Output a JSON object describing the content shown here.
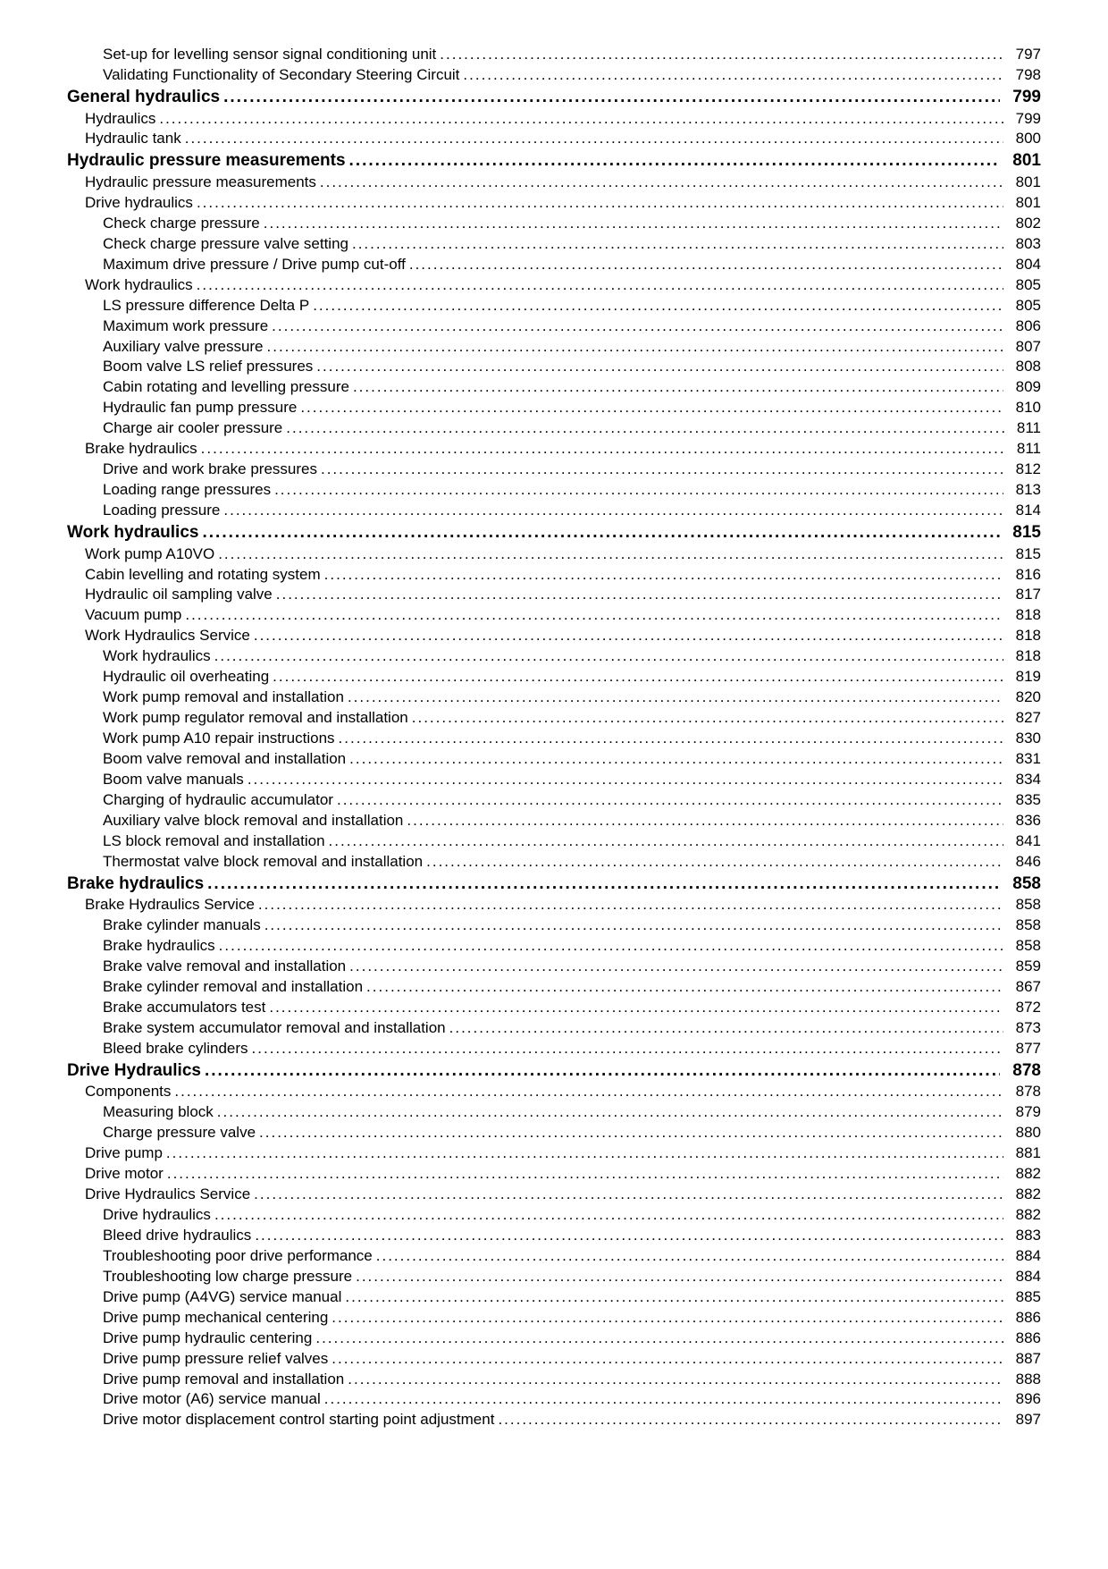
{
  "toc": [
    {
      "level": 2,
      "label": "Set-up for levelling sensor signal conditioning unit",
      "page": 797
    },
    {
      "level": 2,
      "label": "Validating Functionality of Secondary Steering Circuit",
      "page": 798
    },
    {
      "level": 0,
      "label": "General hydraulics",
      "page": 799
    },
    {
      "level": 1,
      "label": "Hydraulics",
      "page": 799
    },
    {
      "level": 1,
      "label": "Hydraulic tank",
      "page": 800
    },
    {
      "level": 0,
      "label": "Hydraulic pressure measurements",
      "page": 801
    },
    {
      "level": 1,
      "label": "Hydraulic pressure measurements",
      "page": 801
    },
    {
      "level": 1,
      "label": "Drive hydraulics",
      "page": 801
    },
    {
      "level": 2,
      "label": "Check charge pressure",
      "page": 802
    },
    {
      "level": 2,
      "label": "Check charge pressure valve setting",
      "page": 803
    },
    {
      "level": 2,
      "label": "Maximum drive pressure / Drive pump cut-off",
      "page": 804
    },
    {
      "level": 1,
      "label": "Work hydraulics",
      "page": 805
    },
    {
      "level": 2,
      "label": "LS pressure difference Delta P",
      "page": 805
    },
    {
      "level": 2,
      "label": "Maximum work pressure",
      "page": 806
    },
    {
      "level": 2,
      "label": "Auxiliary valve pressure",
      "page": 807
    },
    {
      "level": 2,
      "label": "Boom valve LS relief pressures",
      "page": 808
    },
    {
      "level": 2,
      "label": "Cabin rotating and levelling pressure",
      "page": 809
    },
    {
      "level": 2,
      "label": "Hydraulic fan pump pressure",
      "page": 810
    },
    {
      "level": 2,
      "label": "Charge air cooler pressure",
      "page": 811
    },
    {
      "level": 1,
      "label": "Brake hydraulics",
      "page": 811
    },
    {
      "level": 2,
      "label": "Drive and work brake pressures",
      "page": 812
    },
    {
      "level": 2,
      "label": "Loading range pressures",
      "page": 813
    },
    {
      "level": 2,
      "label": "Loading pressure",
      "page": 814
    },
    {
      "level": 0,
      "label": "Work hydraulics",
      "page": 815
    },
    {
      "level": 1,
      "label": "Work pump A10VO",
      "page": 815
    },
    {
      "level": 1,
      "label": "Cabin levelling and rotating system",
      "page": 816
    },
    {
      "level": 1,
      "label": "Hydraulic oil sampling valve",
      "page": 817
    },
    {
      "level": 1,
      "label": "Vacuum pump",
      "page": 818
    },
    {
      "level": 1,
      "label": "Work Hydraulics Service",
      "page": 818
    },
    {
      "level": 2,
      "label": "Work hydraulics",
      "page": 818
    },
    {
      "level": 2,
      "label": "Hydraulic oil overheating",
      "page": 819
    },
    {
      "level": 2,
      "label": "Work pump removal and installation",
      "page": 820
    },
    {
      "level": 2,
      "label": "Work pump regulator removal and installation",
      "page": 827
    },
    {
      "level": 2,
      "label": "Work pump A10 repair instructions",
      "page": 830
    },
    {
      "level": 2,
      "label": "Boom valve removal and installation",
      "page": 831
    },
    {
      "level": 2,
      "label": "Boom valve manuals",
      "page": 834
    },
    {
      "level": 2,
      "label": "Charging of hydraulic accumulator",
      "page": 835
    },
    {
      "level": 2,
      "label": "Auxiliary valve block removal and installation",
      "page": 836
    },
    {
      "level": 2,
      "label": "LS block removal and installation",
      "page": 841
    },
    {
      "level": 2,
      "label": "Thermostat valve block removal and installation",
      "page": 846
    },
    {
      "level": 0,
      "label": "Brake hydraulics",
      "page": 858
    },
    {
      "level": 1,
      "label": "Brake Hydraulics Service",
      "page": 858
    },
    {
      "level": 2,
      "label": "Brake cylinder manuals",
      "page": 858
    },
    {
      "level": 2,
      "label": "Brake hydraulics",
      "page": 858
    },
    {
      "level": 2,
      "label": "Brake valve removal and installation",
      "page": 859
    },
    {
      "level": 2,
      "label": "Brake cylinder removal and installation",
      "page": 867
    },
    {
      "level": 2,
      "label": "Brake accumulators test",
      "page": 872
    },
    {
      "level": 2,
      "label": "Brake system accumulator removal and installation",
      "page": 873
    },
    {
      "level": 2,
      "label": "Bleed brake cylinders",
      "page": 877
    },
    {
      "level": 0,
      "label": "Drive Hydraulics",
      "page": 878
    },
    {
      "level": 1,
      "label": "Components",
      "page": 878
    },
    {
      "level": 2,
      "label": "Measuring block",
      "page": 879
    },
    {
      "level": 2,
      "label": "Charge pressure valve",
      "page": 880
    },
    {
      "level": 1,
      "label": "Drive pump",
      "page": 881
    },
    {
      "level": 1,
      "label": "Drive motor",
      "page": 882
    },
    {
      "level": 1,
      "label": "Drive Hydraulics Service",
      "page": 882
    },
    {
      "level": 2,
      "label": "Drive hydraulics",
      "page": 882
    },
    {
      "level": 2,
      "label": "Bleed drive hydraulics",
      "page": 883
    },
    {
      "level": 2,
      "label": "Troubleshooting poor drive performance",
      "page": 884
    },
    {
      "level": 2,
      "label": "Troubleshooting low charge pressure",
      "page": 884
    },
    {
      "level": 2,
      "label": "Drive pump (A4VG) service manual",
      "page": 885
    },
    {
      "level": 2,
      "label": "Drive pump mechanical centering",
      "page": 886
    },
    {
      "level": 2,
      "label": "Drive pump hydraulic centering",
      "page": 886
    },
    {
      "level": 2,
      "label": "Drive pump pressure relief valves",
      "page": 887
    },
    {
      "level": 2,
      "label": "Drive pump removal and installation",
      "page": 888
    },
    {
      "level": 2,
      "label": "Drive motor (A6) service manual",
      "page": 896
    },
    {
      "level": 2,
      "label": "Drive motor displacement control starting point adjustment",
      "page": 897
    }
  ]
}
